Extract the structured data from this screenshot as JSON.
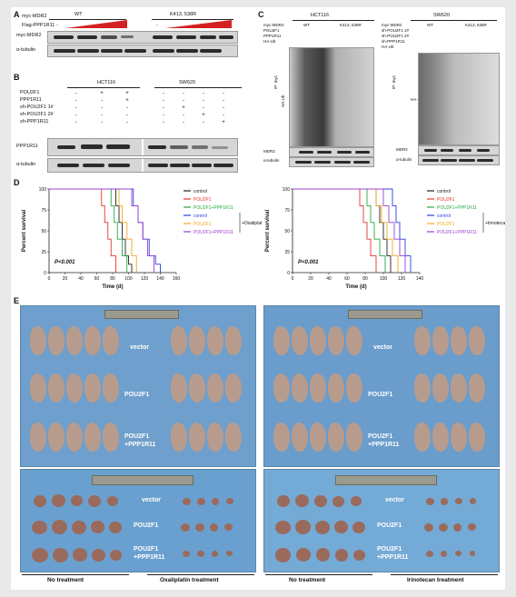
{
  "panelA": {
    "letter": "A",
    "myc_label": "myc-MDR2",
    "flag_label": "Flag-PPP1R11",
    "wt": "WT",
    "mut": "K413, 538R",
    "dash": "-",
    "row_labels": [
      "myc-MDR2",
      "α-tubulin"
    ]
  },
  "panelB": {
    "letter": "B",
    "cell1": "HCT116",
    "cell2": "SW620",
    "conditions": [
      "POU2F1",
      "PPP1R11",
      "sh-POU2F1 1#",
      "sh-POU2F1 2#",
      "sh-PPP1R11"
    ],
    "row_labels": [
      "PPP1R11",
      "α-tubulin"
    ]
  },
  "panelC": {
    "letter": "C",
    "left_title": "HCT116",
    "right_title": "SW620",
    "left_conditions": [
      "myc-MDR2",
      "POU2F1",
      "PPP1R11",
      "HA-Ub"
    ],
    "right_conditions": [
      "myc-MDR2",
      "sh-POU2F1 1#",
      "sh-POU2F1 2#",
      "sh-PPP1R11",
      "HA-Ub"
    ],
    "wt": "WT",
    "mut": "K413, 538R",
    "ip_label": "IP: myc",
    "ha_ub": "HA-Ub",
    "row_labels": [
      "MDR2",
      "α-tubulin"
    ]
  },
  "panelD": {
    "letter": "D",
    "charts": [
      {
        "type": "line",
        "xlabel": "Time (d)",
        "ylabel": "Percent survival",
        "xlim": [
          0,
          160
        ],
        "ylim": [
          0,
          100
        ],
        "xticks": [
          0,
          20,
          40,
          60,
          80,
          100,
          120,
          140,
          160
        ],
        "yticks": [
          0,
          25,
          50,
          75,
          100
        ],
        "p_value": "P<0.001",
        "treatment": "Oxaliplatin",
        "legend": [
          {
            "name": "control",
            "color": "#222222"
          },
          {
            "name": "POU2F1",
            "color": "#e8342c"
          },
          {
            "name": "POU2F1+PPP1R11",
            "color": "#27a843"
          },
          {
            "name": "control",
            "color": "#2d3fe0"
          },
          {
            "name": "POU2F1",
            "color": "#f2a81d"
          },
          {
            "name": "POU2F1+PPP1R11",
            "color": "#9b3fd1"
          }
        ],
        "series": [
          {
            "color": "#222222",
            "x": [
              0,
              78,
              84,
              88,
              92,
              96,
              100,
              104
            ],
            "y": [
              100,
              100,
              80,
              60,
              40,
              20,
              10,
              0
            ]
          },
          {
            "color": "#e8342c",
            "x": [
              0,
              62,
              66,
              70,
              74,
              78,
              84
            ],
            "y": [
              100,
              100,
              80,
              60,
              40,
              20,
              0
            ]
          },
          {
            "color": "#27a843",
            "x": [
              0,
              72,
              78,
              82,
              86,
              92,
              98
            ],
            "y": [
              100,
              100,
              80,
              60,
              40,
              20,
              0
            ]
          },
          {
            "color": "#2d3fe0",
            "x": [
              0,
              100,
              106,
              112,
              118,
              126,
              134,
              140
            ],
            "y": [
              100,
              100,
              80,
              60,
              40,
              20,
              10,
              0
            ]
          },
          {
            "color": "#f2a81d",
            "x": [
              0,
              84,
              88,
              92,
              98,
              104,
              110
            ],
            "y": [
              100,
              100,
              80,
              60,
              40,
              20,
              0
            ]
          },
          {
            "color": "#9b3fd1",
            "x": [
              0,
              96,
              104,
              112,
              118,
              124,
              132
            ],
            "y": [
              100,
              100,
              80,
              60,
              40,
              20,
              0
            ]
          }
        ]
      },
      {
        "type": "line",
        "xlabel": "Time (d)",
        "ylabel": "Percent survival",
        "xlim": [
          0,
          140
        ],
        "ylim": [
          0,
          100
        ],
        "xticks": [
          0,
          20,
          40,
          60,
          80,
          100,
          120,
          140
        ],
        "yticks": [
          0,
          25,
          50,
          75,
          100
        ],
        "p_value": "P<0.001",
        "treatment": "Irinotecan",
        "legend": [
          {
            "name": "control",
            "color": "#222222"
          },
          {
            "name": "POU2F1",
            "color": "#e8342c"
          },
          {
            "name": "POU2F1+PPP1R11",
            "color": "#27a843"
          },
          {
            "name": "control",
            "color": "#2d3fe0"
          },
          {
            "name": "POU2F1",
            "color": "#f2a81d"
          },
          {
            "name": "POU2F1+PPP1R11",
            "color": "#9b3fd1"
          }
        ],
        "series": [
          {
            "color": "#222222",
            "x": [
              0,
              88,
              92,
              96,
              100,
              104,
              108
            ],
            "y": [
              100,
              100,
              80,
              60,
              40,
              20,
              0
            ]
          },
          {
            "color": "#e8342c",
            "x": [
              0,
              70,
              74,
              78,
              82,
              86,
              92
            ],
            "y": [
              100,
              100,
              80,
              60,
              40,
              20,
              0
            ]
          },
          {
            "color": "#27a843",
            "x": [
              0,
              78,
              82,
              86,
              90,
              96,
              102
            ],
            "y": [
              100,
              100,
              80,
              60,
              40,
              20,
              0
            ]
          },
          {
            "color": "#2d3fe0",
            "x": [
              0,
              104,
              110,
              114,
              118,
              124,
              130
            ],
            "y": [
              100,
              100,
              80,
              60,
              40,
              20,
              0
            ]
          },
          {
            "color": "#f2a81d",
            "x": [
              0,
              86,
              92,
              98,
              104,
              110,
              116
            ],
            "y": [
              100,
              100,
              80,
              60,
              40,
              20,
              0
            ]
          },
          {
            "color": "#9b3fd1",
            "x": [
              0,
              94,
              100,
              106,
              112,
              118,
              124
            ],
            "y": [
              100,
              100,
              80,
              60,
              40,
              20,
              0
            ]
          }
        ]
      }
    ]
  },
  "panelE": {
    "letter": "E",
    "group_labels": [
      "vector",
      "POU2F1",
      "POU2F1",
      "+PPP1R11"
    ],
    "treatments": [
      "No treatment",
      "Oxaliplatin treatment",
      "No treatment",
      "Irinotecan treatment"
    ],
    "photo_color": "#6a9ccc"
  }
}
